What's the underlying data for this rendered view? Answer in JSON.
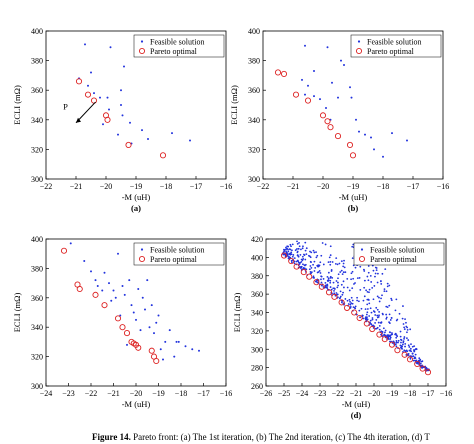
{
  "caption": {
    "label": "Figure 14.",
    "text": "Pareto front: (a) The 1st iteration, (b) The 2nd iteration, (c) The 4th iteration, (d) T"
  },
  "colors": {
    "feasible": "#2233dd",
    "pareto": "#dd2222"
  },
  "chart_data": [
    {
      "type": "scatter",
      "panel_label": "(a)",
      "xlabel": "-M (uH)",
      "ylabel": "ECLI (mΩ)",
      "xlim": [
        -22,
        -16
      ],
      "ylim": [
        300,
        400
      ],
      "xticks": [
        -22,
        -21,
        -20,
        -19,
        -18,
        -17,
        -16
      ],
      "yticks": [
        300,
        320,
        340,
        360,
        380,
        400
      ],
      "legend": [
        "Feasible solution",
        "Pareto optimal"
      ],
      "legend_position": "top-right",
      "annotation": "P",
      "series": [
        {
          "name": "Feasible solution",
          "x": [
            -20.7,
            -20.5,
            -20.9,
            -20.6,
            -20.4,
            -20.2,
            -19.95,
            -19.9,
            -19.85,
            -19.5,
            -19.5,
            -19.4,
            -19.45,
            -19.2,
            -19.6,
            -20.1,
            -19.15,
            -18.8,
            -18.6,
            -17.8,
            -17.2
          ],
          "y": [
            391,
            372,
            368,
            363,
            358,
            355,
            355,
            347,
            389,
            360,
            350,
            376,
            343,
            338,
            330,
            337,
            324,
            333,
            327,
            331,
            326
          ]
        },
        {
          "name": "Pareto optimal",
          "x": [
            -20.9,
            -20.6,
            -20.4,
            -20.0,
            -19.95,
            -19.25,
            -18.1
          ],
          "y": [
            366,
            357,
            353,
            343,
            340,
            323,
            316
          ]
        }
      ]
    },
    {
      "type": "scatter",
      "panel_label": "(b)",
      "xlabel": "-M (uH)",
      "ylabel": "ECLI (mΩ)",
      "xlim": [
        -22,
        -16
      ],
      "ylim": [
        300,
        400
      ],
      "xticks": [
        -22,
        -21,
        -20,
        -19,
        -18,
        -17,
        -16
      ],
      "yticks": [
        300,
        320,
        340,
        360,
        380,
        400
      ],
      "legend": [
        "Feasible solution",
        "Pareto optimal"
      ],
      "legend_position": "top-right",
      "series": [
        {
          "name": "Feasible solution",
          "x": [
            -20.6,
            -20.3,
            -20.7,
            -20.5,
            -20.6,
            -20.3,
            -20.1,
            -19.9,
            -19.85,
            -19.7,
            -19.75,
            -19.5,
            -19.4,
            -19.3,
            -19.1,
            -19.05,
            -18.9,
            -18.8,
            -18.6,
            -18.4,
            -18.3,
            -18.0,
            -17.7,
            -17.2
          ],
          "y": [
            390,
            373,
            367,
            363,
            357,
            356,
            354,
            348,
            389,
            365,
            340,
            355,
            380,
            377,
            362,
            355,
            340,
            332,
            330,
            328,
            320,
            315,
            331,
            326
          ]
        },
        {
          "name": "Pareto optimal",
          "x": [
            -21.5,
            -21.3,
            -20.9,
            -20.5,
            -20.0,
            -19.85,
            -19.75,
            -19.5,
            -19.1,
            -19.0
          ],
          "y": [
            372,
            371,
            357,
            353,
            343,
            339,
            335,
            329,
            323,
            316
          ]
        }
      ]
    },
    {
      "type": "scatter",
      "panel_label": "",
      "xlabel": "-M (uH)",
      "ylabel": "ECLI (mΩ)",
      "xlim": [
        -24,
        -16
      ],
      "ylim": [
        300,
        400
      ],
      "xticks": [
        -24,
        -23,
        -22,
        -21,
        -20,
        -19,
        -18,
        -17,
        -16
      ],
      "yticks": [
        300,
        320,
        340,
        360,
        380,
        400
      ],
      "legend": [
        "Feasible solution",
        "Pareto optimal"
      ],
      "legend_position": "top-right",
      "series": [
        {
          "name": "Feasible solution",
          "x": [
            -22.9,
            -22.3,
            -22.0,
            -21.8,
            -21.7,
            -21.5,
            -21.4,
            -21.2,
            -21.0,
            -20.9,
            -20.8,
            -20.6,
            -20.5,
            -20.3,
            -20.2,
            -20.1,
            -20.0,
            -19.9,
            -19.7,
            -19.6,
            -19.5,
            -19.4,
            -19.3,
            -19.2,
            -19.0,
            -18.9,
            -18.7,
            -18.5,
            -18.3,
            -18.1,
            -17.8,
            -17.5,
            -17.2,
            -20.7,
            -21.1,
            -19.8,
            -20.4,
            -19.1,
            -18.8,
            -18.2
          ],
          "y": [
            397,
            385,
            378,
            372,
            368,
            365,
            377,
            370,
            365,
            360,
            390,
            368,
            362,
            372,
            355,
            350,
            345,
            366,
            360,
            352,
            372,
            340,
            355,
            336,
            348,
            325,
            330,
            338,
            320,
            330,
            327,
            325,
            324,
            348,
            358,
            338,
            328,
            343,
            318,
            330
          ]
        },
        {
          "name": "Pareto optimal",
          "x": [
            -23.2,
            -22.6,
            -22.5,
            -21.8,
            -21.4,
            -20.8,
            -20.6,
            -20.4,
            -20.2,
            -20.1,
            -20.0,
            -19.9,
            -19.3,
            -19.2,
            -19.1
          ],
          "y": [
            392,
            369,
            366,
            362,
            355,
            346,
            340,
            336,
            330,
            329,
            328,
            326,
            324,
            320,
            317
          ]
        }
      ]
    },
    {
      "type": "scatter",
      "panel_label": "(d)",
      "xlabel": "-M (uH)",
      "ylabel": "ECLI (mΩ)",
      "xlim": [
        -26,
        -16
      ],
      "ylim": [
        260,
        420
      ],
      "xticks": [
        -26,
        -25,
        -24,
        -23,
        -22,
        -21,
        -20,
        -19,
        -18,
        -17,
        -16
      ],
      "yticks": [
        260,
        280,
        300,
        320,
        340,
        360,
        380,
        400,
        420
      ],
      "legend": [
        "Feasible solution",
        "Pareto optimal"
      ],
      "legend_position": "top-right",
      "generator": {
        "seed": 7,
        "count": 700,
        "front_start": [
          -25,
          402
        ],
        "front_end": [
          -17,
          275
        ],
        "max_spread": 100
      },
      "series": [
        {
          "name": "Pareto optimal",
          "x": [
            -25.0,
            -24.6,
            -24.3,
            -23.9,
            -23.6,
            -23.2,
            -22.9,
            -22.5,
            -22.2,
            -21.8,
            -21.5,
            -21.1,
            -20.8,
            -20.4,
            -20.1,
            -19.7,
            -19.4,
            -19.0,
            -18.7,
            -18.3,
            -18.0,
            -17.6,
            -17.3,
            -17.0
          ],
          "y": [
            402,
            396,
            390,
            384,
            379,
            373,
            368,
            362,
            357,
            351,
            345,
            340,
            334,
            328,
            322,
            316,
            311,
            305,
            299,
            294,
            289,
            284,
            279,
            275
          ]
        }
      ]
    }
  ]
}
